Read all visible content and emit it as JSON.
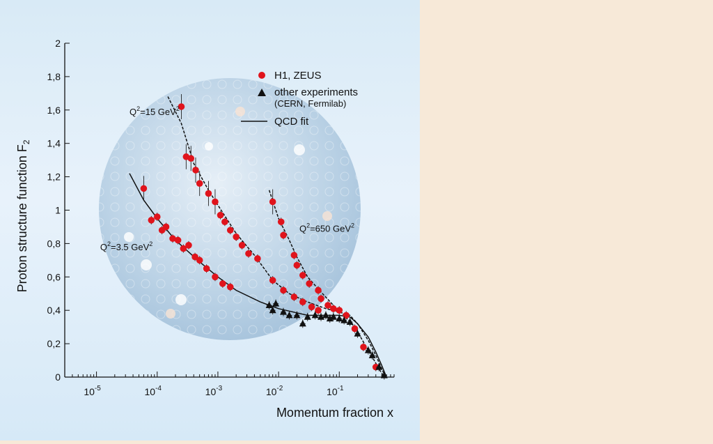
{
  "chart_data": {
    "type": "scatter",
    "title": "",
    "xlabel": "Momentum fraction x",
    "ylabel": "Proton structure function F",
    "ylabel_sub": "2",
    "xscale": "log",
    "xlim": [
      3e-06,
      0.8
    ],
    "ylim": [
      0,
      2
    ],
    "grid": false,
    "legend_position": "top-right",
    "x_ticks": [
      {
        "value": 1e-05,
        "base": "10",
        "exp": "-5"
      },
      {
        "value": 0.0001,
        "base": "10",
        "exp": "-4"
      },
      {
        "value": 0.001,
        "base": "10",
        "exp": "-3"
      },
      {
        "value": 0.01,
        "base": "10",
        "exp": "-2"
      },
      {
        "value": 0.1,
        "base": "10",
        "exp": "-1"
      }
    ],
    "y_ticks": [
      {
        "value": 0,
        "label": "0"
      },
      {
        "value": 0.2,
        "label": "0,2"
      },
      {
        "value": 0.4,
        "label": "0,4"
      },
      {
        "value": 0.6,
        "label": "0,6"
      },
      {
        "value": 0.8,
        "label": "0,8"
      },
      {
        "value": 1,
        "label": "1"
      },
      {
        "value": 1.2,
        "label": "1,2"
      },
      {
        "value": 1.4,
        "label": "1,4"
      },
      {
        "value": 1.6,
        "label": "1,6"
      },
      {
        "value": 1.8,
        "label": "1,8"
      },
      {
        "value": 2,
        "label": "2"
      }
    ],
    "legend": {
      "h1zeus": "H1, ZEUS",
      "other": "other experiments",
      "other_sub": "(CERN, Fermilab)",
      "qcd": "QCD fit"
    },
    "annotations": [
      {
        "id": "q15",
        "prefix": "Q",
        "sup": "2",
        "rest": "=15 GeV",
        "sup2": "2",
        "x": 3.5e-05,
        "y": 1.57
      },
      {
        "id": "q35",
        "prefix": "Q",
        "sup": "2",
        "rest": "=3.5 GeV",
        "sup2": "2",
        "x": 1.15e-05,
        "y": 0.76
      },
      {
        "id": "q650",
        "prefix": "Q",
        "sup": "2",
        "rest": "=650 GeV",
        "sup2": "2",
        "x": 0.022,
        "y": 0.87
      }
    ],
    "colors": {
      "h1zeus": "#e0141c",
      "other": "#111111",
      "fit": "#111111"
    },
    "series": [
      {
        "name": "H1, ZEUS",
        "marker": "circle",
        "points": [
          [
            6e-05,
            1.13
          ],
          [
            8e-05,
            0.94
          ],
          [
            0.0001,
            0.96
          ],
          [
            0.00012,
            0.88
          ],
          [
            0.00014,
            0.9
          ],
          [
            0.00018,
            0.83
          ],
          [
            0.00022,
            0.82
          ],
          [
            0.00027,
            0.77
          ],
          [
            0.00033,
            0.79
          ],
          [
            0.00042,
            0.72
          ],
          [
            0.0005,
            0.7
          ],
          [
            0.00065,
            0.65
          ],
          [
            0.0009,
            0.6
          ],
          [
            0.0012,
            0.56
          ],
          [
            0.0016,
            0.54
          ],
          [
            0.00025,
            1.62
          ],
          [
            0.0003,
            1.32
          ],
          [
            0.00036,
            1.31
          ],
          [
            0.00043,
            1.24
          ],
          [
            0.0005,
            1.16
          ],
          [
            0.0007,
            1.1
          ],
          [
            0.0009,
            1.05
          ],
          [
            0.0011,
            0.97
          ],
          [
            0.0013,
            0.93
          ],
          [
            0.0016,
            0.88
          ],
          [
            0.002,
            0.84
          ],
          [
            0.0025,
            0.79
          ],
          [
            0.0032,
            0.74
          ],
          [
            0.0045,
            0.71
          ],
          [
            0.008,
            0.58
          ],
          [
            0.012,
            0.52
          ],
          [
            0.018,
            0.48
          ],
          [
            0.025,
            0.45
          ],
          [
            0.035,
            0.42
          ],
          [
            0.045,
            0.4
          ],
          [
            0.008,
            1.05
          ],
          [
            0.011,
            0.93
          ],
          [
            0.012,
            0.85
          ],
          [
            0.018,
            0.73
          ],
          [
            0.02,
            0.67
          ],
          [
            0.025,
            0.61
          ],
          [
            0.032,
            0.56
          ],
          [
            0.045,
            0.52
          ],
          [
            0.05,
            0.47
          ],
          [
            0.065,
            0.43
          ],
          [
            0.08,
            0.41
          ],
          [
            0.1,
            0.4
          ],
          [
            0.13,
            0.37
          ],
          [
            0.18,
            0.29
          ],
          [
            0.25,
            0.18
          ],
          [
            0.4,
            0.06
          ]
        ]
      },
      {
        "name": "other experiments",
        "marker": "triangle",
        "points": [
          [
            0.007,
            0.43
          ],
          [
            0.008,
            0.4
          ],
          [
            0.009,
            0.44
          ],
          [
            0.012,
            0.39
          ],
          [
            0.015,
            0.37
          ],
          [
            0.02,
            0.37
          ],
          [
            0.025,
            0.32
          ],
          [
            0.03,
            0.36
          ],
          [
            0.04,
            0.37
          ],
          [
            0.05,
            0.36
          ],
          [
            0.06,
            0.37
          ],
          [
            0.07,
            0.35
          ],
          [
            0.08,
            0.36
          ],
          [
            0.1,
            0.35
          ],
          [
            0.12,
            0.34
          ],
          [
            0.15,
            0.33
          ],
          [
            0.2,
            0.26
          ],
          [
            0.3,
            0.16
          ],
          [
            0.35,
            0.13
          ],
          [
            0.45,
            0.06
          ],
          [
            0.55,
            0.01
          ]
        ]
      }
    ],
    "fits": [
      {
        "label": "Q2=3.5 GeV2",
        "style": "solid",
        "points": [
          [
            3.5e-05,
            1.22
          ],
          [
            6e-05,
            1.06
          ],
          [
            0.0001,
            0.95
          ],
          [
            0.0002,
            0.82
          ],
          [
            0.0005,
            0.69
          ],
          [
            0.001,
            0.6
          ],
          [
            0.002,
            0.52
          ],
          [
            0.005,
            0.45
          ],
          [
            0.01,
            0.41
          ],
          [
            0.03,
            0.37
          ],
          [
            0.06,
            0.37
          ],
          [
            0.1,
            0.37
          ],
          [
            0.15,
            0.36
          ],
          [
            0.2,
            0.32
          ],
          [
            0.3,
            0.24
          ],
          [
            0.4,
            0.15
          ],
          [
            0.5,
            0.07
          ],
          [
            0.6,
            0.0
          ]
        ]
      },
      {
        "label": "Q2=15 GeV2",
        "style": "dashed",
        "points": [
          [
            0.00015,
            1.68
          ],
          [
            0.00025,
            1.52
          ],
          [
            0.0004,
            1.28
          ],
          [
            0.0007,
            1.12
          ],
          [
            0.001,
            1.03
          ],
          [
            0.002,
            0.86
          ],
          [
            0.004,
            0.73
          ],
          [
            0.008,
            0.58
          ],
          [
            0.015,
            0.5
          ],
          [
            0.03,
            0.45
          ],
          [
            0.06,
            0.41
          ],
          [
            0.1,
            0.39
          ],
          [
            0.15,
            0.37
          ],
          [
            0.2,
            0.32
          ],
          [
            0.3,
            0.22
          ],
          [
            0.4,
            0.13
          ],
          [
            0.5,
            0.05
          ],
          [
            0.58,
            0.0
          ]
        ]
      },
      {
        "label": "Q2=650 GeV2",
        "style": "dashed",
        "points": [
          [
            0.007,
            1.12
          ],
          [
            0.01,
            0.95
          ],
          [
            0.015,
            0.82
          ],
          [
            0.02,
            0.72
          ],
          [
            0.03,
            0.6
          ],
          [
            0.05,
            0.51
          ],
          [
            0.08,
            0.43
          ],
          [
            0.12,
            0.37
          ],
          [
            0.18,
            0.3
          ],
          [
            0.25,
            0.21
          ],
          [
            0.35,
            0.12
          ],
          [
            0.45,
            0.05
          ],
          [
            0.55,
            0.0
          ]
        ]
      }
    ]
  }
}
